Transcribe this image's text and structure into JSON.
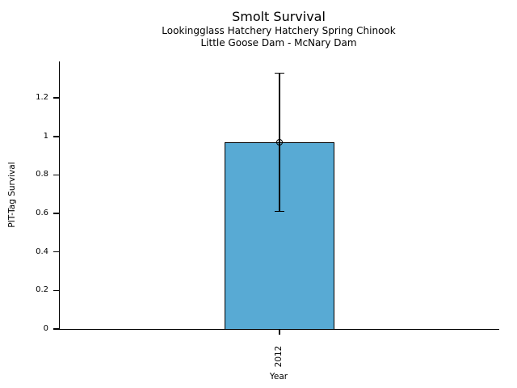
{
  "chart_data": {
    "type": "bar",
    "title": "Smolt Survival",
    "subtitle_line1": "Lookingglass Hatchery Hatchery Spring Chinook",
    "subtitle_line2": "Little Goose Dam - McNary Dam",
    "xlabel": "Year",
    "ylabel": "PIT-Tag Survival",
    "categories": [
      "2012"
    ],
    "series": [
      {
        "name": "PIT-Tag Survival",
        "values": [
          0.97
        ],
        "error_low": [
          0.61
        ],
        "error_high": [
          1.33
        ]
      }
    ],
    "yticks": [
      0,
      0.2,
      0.4,
      0.6,
      0.8,
      1,
      1.2
    ],
    "ylim": [
      0,
      1.39
    ],
    "grid": false,
    "legend_position": "none",
    "marker": "open-circle",
    "colors": {
      "bar_fill": "#58AAD4",
      "bar_edge": "#000000",
      "error_bar": "#000000",
      "text": "#000000",
      "background": "#ffffff"
    }
  }
}
